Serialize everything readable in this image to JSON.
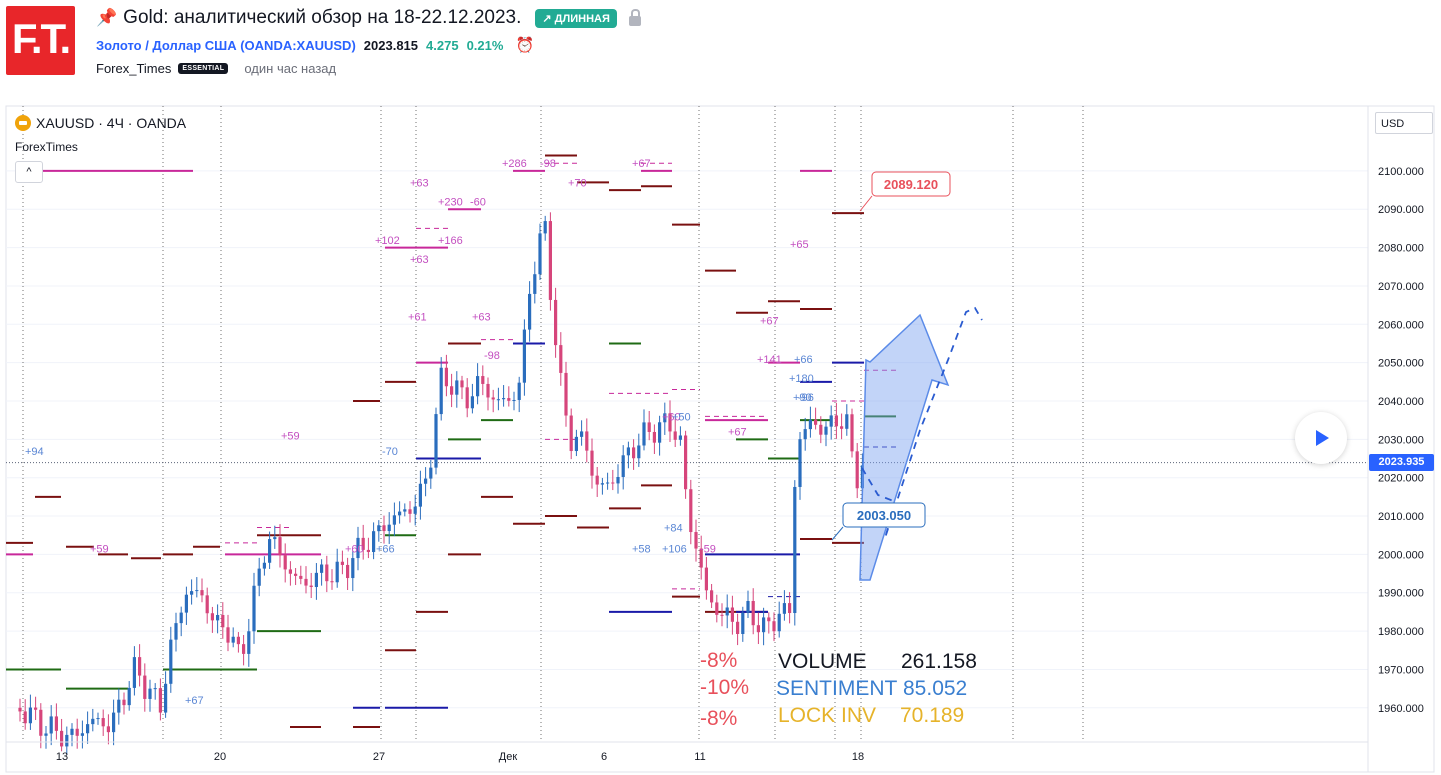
{
  "header": {
    "logo_text": "F.T.",
    "title": "Gold: аналитический обзор на 18-22.12.2023.",
    "badge": "↗ ДЛИННАЯ",
    "symbol_link": "Золото / Доллар США (OANDA:XAUUSD)",
    "price": "2023.815",
    "change": "4.275",
    "change_pct": "0.21%",
    "author": "Forex_Times",
    "author_badge": "ESSENTIAL",
    "published": "один час назад"
  },
  "chart_legend": {
    "symbol": "XAUUSD · 4Ч · OANDA",
    "indicator": "ForexTimes",
    "collapse": "^"
  },
  "axis": {
    "currency": "USD",
    "last_price": "2023.935"
  },
  "stats": {
    "pct_1": "-8%",
    "pct_2": "-10%",
    "pct_3": "-8%",
    "volume_label": "VOLUME",
    "volume_value": "261.158",
    "sentiment_label": "SENTIMENT",
    "sentiment_value": "85.052",
    "lockinv_label": "LOCK INV",
    "lockinv_value": "70.189"
  },
  "colors": {
    "up": "#2a6dbd",
    "down": "#d6457b",
    "accent": "#2962ff",
    "level_dark": "#7a1010",
    "level_magenta": "#c8289a",
    "level_green": "#1f6b14",
    "level_blue": "#1a1aa8",
    "pct_red": "#e8505b",
    "sentiment_blue": "#3a7fd0",
    "lockinv_gold": "#e6b32a"
  },
  "chart_data": {
    "type": "candlestick",
    "symbol": "XAUUSD",
    "timeframe": "4Ч",
    "ylim": [
      1950,
      2115
    ],
    "yticks": [
      1960,
      1970,
      1980,
      1990,
      2000,
      2010,
      2020,
      2030,
      2040,
      2050,
      2060,
      2070,
      2080,
      2090,
      2100
    ],
    "ytick_labels": [
      "1960.000",
      "1970.000",
      "1980.000",
      "1990.000",
      "2000.000",
      "2010.000",
      "2020.000",
      "2030.000",
      "2040.000",
      "2050.000",
      "2060.000",
      "2070.000",
      "2080.000",
      "2090.000",
      "2100.000"
    ],
    "x_labels": [
      "13",
      "20",
      "27",
      "Дек",
      "6",
      "11",
      "18"
    ],
    "last_price": 2023.935,
    "targets": [
      {
        "label": "2089.120",
        "value": 2089.12,
        "color": "#e8505b"
      },
      {
        "label": "2003.050",
        "value": 2003.05,
        "color": "#2a6dbd"
      }
    ],
    "annotations": [
      {
        "text": "+94",
        "price": 2027,
        "color": "#5a86d4"
      },
      {
        "text": "+59",
        "price": 2001.5,
        "color": "#c34fc0"
      },
      {
        "text": "+67",
        "price": 1962,
        "color": "#5a86d4"
      },
      {
        "text": "+59",
        "price": 2031,
        "color": "#c34fc0"
      },
      {
        "text": "+60",
        "price": 2001.5,
        "color": "#c34fc0"
      },
      {
        "text": "+66",
        "price": 2001.5,
        "color": "#5a86d4"
      },
      {
        "text": "-70",
        "price": 2027,
        "color": "#5a86d4"
      },
      {
        "text": "+63",
        "price": 2097,
        "color": "#c34fc0"
      },
      {
        "text": "+230",
        "price": 2092,
        "color": "#c34fc0"
      },
      {
        "text": "-60",
        "price": 2092,
        "color": "#c34fc0"
      },
      {
        "text": "+102",
        "price": 2082,
        "color": "#c34fc0"
      },
      {
        "text": "+166",
        "price": 2082,
        "color": "#c34fc0"
      },
      {
        "text": "+63",
        "price": 2077,
        "color": "#c34fc0"
      },
      {
        "text": "+61",
        "price": 2062,
        "color": "#c34fc0"
      },
      {
        "text": "+63",
        "price": 2062,
        "color": "#c34fc0"
      },
      {
        "text": "+286",
        "price": 2102,
        "color": "#c34fc0"
      },
      {
        "text": "-98",
        "price": 2102,
        "color": "#c34fc0"
      },
      {
        "text": "+67",
        "price": 2102,
        "color": "#c34fc0"
      },
      {
        "text": "+70",
        "price": 2097,
        "color": "#c34fc0"
      },
      {
        "text": "-98",
        "price": 2052,
        "color": "#c34fc0"
      },
      {
        "text": "+60",
        "price": 2036,
        "color": "#c34fc0"
      },
      {
        "text": "+50",
        "price": 2036,
        "color": "#5a86d4"
      },
      {
        "text": "+67",
        "price": 2032,
        "color": "#c34fc0"
      },
      {
        "text": "+84",
        "price": 2007,
        "color": "#5a86d4"
      },
      {
        "text": "+58",
        "price": 2001.5,
        "color": "#5a86d4"
      },
      {
        "text": "+106",
        "price": 2001.5,
        "color": "#5a86d4"
      },
      {
        "text": "-59",
        "price": 2001.5,
        "color": "#c34fc0"
      },
      {
        "text": "+65",
        "price": 2081,
        "color": "#c34fc0"
      },
      {
        "text": "+67",
        "price": 2061,
        "color": "#c34fc0"
      },
      {
        "text": "+141",
        "price": 2051,
        "color": "#c34fc0"
      },
      {
        "text": "+66",
        "price": 2051,
        "color": "#5a86d4"
      },
      {
        "text": "+180",
        "price": 2046,
        "color": "#5a86d4"
      },
      {
        "text": "+90",
        "price": 2041,
        "color": "#5a86d4"
      },
      {
        "text": "-96",
        "price": 2041,
        "color": "#5a86d4"
      }
    ]
  }
}
